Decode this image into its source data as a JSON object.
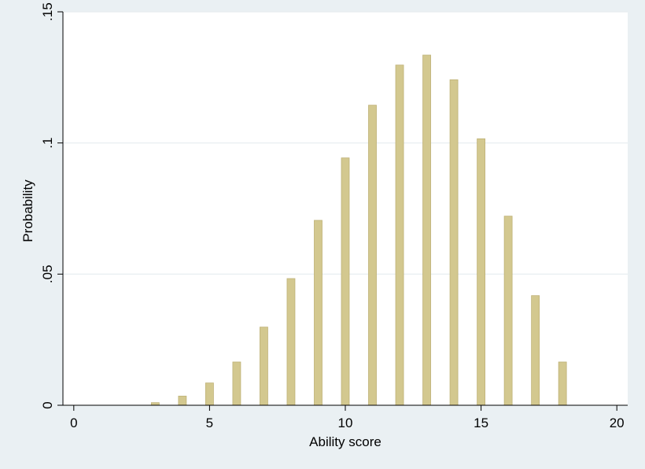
{
  "colors": {
    "outer_background": "#eaf0f3",
    "plot_background": "#ffffff",
    "grid": "#e6ecef",
    "bar_fill": "#d3c88f",
    "bar_stroke": "#bfb277",
    "axis": "#000000"
  },
  "chart_data": {
    "type": "bar",
    "xlabel": "Ability score",
    "ylabel": "Probability",
    "xlim": [
      -0.4,
      20.4
    ],
    "ylim": [
      0,
      0.15
    ],
    "xticks": [
      0,
      5,
      10,
      15,
      20
    ],
    "xtick_labels": [
      "0",
      "5",
      "10",
      "15",
      "20"
    ],
    "yticks": [
      0,
      0.05,
      0.1,
      0.15
    ],
    "ytick_labels": [
      "0",
      ".05",
      ".1",
      ".15"
    ],
    "grid": true,
    "legend": "none",
    "x": [
      0,
      1,
      2,
      3,
      4,
      5,
      6,
      7,
      8,
      9,
      10,
      11,
      12,
      13,
      14,
      15,
      16,
      17,
      18,
      19,
      20
    ],
    "values": [
      0.0,
      0.0,
      0.0,
      0.001,
      0.0035,
      0.0085,
      0.0165,
      0.0298,
      0.0483,
      0.0705,
      0.0943,
      0.1144,
      0.1297,
      0.1335,
      0.1241,
      0.1016,
      0.0721,
      0.0418,
      0.0165,
      0.0,
      0.0
    ]
  }
}
